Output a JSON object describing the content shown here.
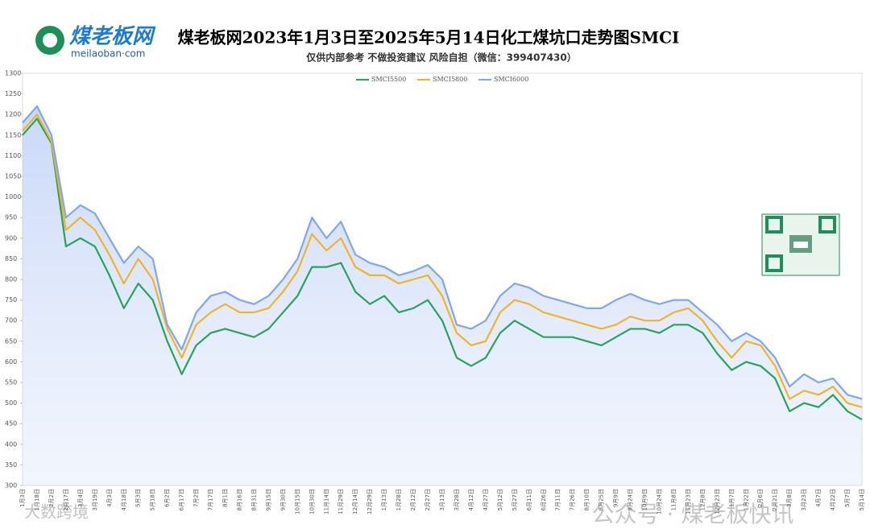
{
  "logo": {
    "name": "煤老板网",
    "url": "meilaoban·com"
  },
  "watermarks": [
    "公众号 · 煤老板快讯",
    "大数跨境"
  ],
  "chart_data": {
    "type": "line",
    "title": "煤老板网2023年1月3日至2025年5月14日化工煤坑口走势图SMCI",
    "subtitle": "仅供内部参考 不做投资建议 风险自担（微信：399407430）",
    "categories": [
      "1月3日",
      "1月18日",
      "2月2日",
      "2月17日",
      "3月4日",
      "3月19日",
      "4月3日",
      "4月18日",
      "5月3日",
      "5月18日",
      "6月2日",
      "6月17日",
      "7月2日",
      "7月17日",
      "8月1日",
      "8月16日",
      "8月31日",
      "9月15日",
      "9月30日",
      "10月15日",
      "10月30日",
      "11月14日",
      "11月29日",
      "12月14日",
      "12月29日",
      "1月13日",
      "1月28日",
      "2月12日",
      "2月27日",
      "3月13日",
      "3月28日",
      "4月12日",
      "4月27日",
      "5月12日",
      "5月27日",
      "6月11日",
      "6月26日",
      "7月11日",
      "7月26日",
      "8月10日",
      "8月25日",
      "9月9日",
      "9月24日",
      "10月9日",
      "10月24日",
      "11月8日",
      "11月23日",
      "12月8日",
      "12月23日",
      "1月7日",
      "1月22日",
      "2月6日",
      "2月21日",
      "3月8日",
      "3月23日",
      "4月7日",
      "4月22日",
      "5月7日",
      "5月14日"
    ],
    "series": [
      {
        "name": "SMCI5500",
        "color": "#27a35a",
        "values": [
          1150,
          1190,
          1130,
          880,
          900,
          880,
          810,
          730,
          790,
          750,
          650,
          570,
          640,
          670,
          680,
          670,
          660,
          680,
          720,
          760,
          830,
          830,
          840,
          770,
          740,
          760,
          720,
          730,
          750,
          700,
          610,
          590,
          610,
          670,
          700,
          680,
          660,
          660,
          660,
          650,
          640,
          660,
          680,
          680,
          670,
          690,
          690,
          670,
          620,
          580,
          600,
          590,
          560,
          480,
          500,
          490,
          520,
          480,
          460
        ]
      },
      {
        "name": "SMCI5800",
        "color": "#f0b429",
        "values": [
          1160,
          1200,
          1135,
          920,
          950,
          920,
          860,
          790,
          850,
          800,
          680,
          610,
          690,
          720,
          740,
          720,
          720,
          730,
          770,
          820,
          910,
          870,
          900,
          830,
          810,
          810,
          790,
          800,
          810,
          760,
          670,
          640,
          650,
          720,
          750,
          740,
          720,
          710,
          700,
          690,
          680,
          690,
          710,
          700,
          700,
          720,
          730,
          700,
          650,
          610,
          650,
          640,
          590,
          510,
          530,
          520,
          540,
          500,
          490
        ]
      },
      {
        "name": "SMCI6000",
        "color": "#7fa6f0",
        "values": [
          1180,
          1220,
          1150,
          950,
          980,
          960,
          900,
          840,
          880,
          850,
          690,
          630,
          720,
          760,
          770,
          750,
          740,
          760,
          800,
          850,
          950,
          900,
          940,
          860,
          840,
          830,
          810,
          820,
          835,
          800,
          690,
          680,
          700,
          760,
          790,
          780,
          760,
          750,
          740,
          730,
          730,
          750,
          765,
          750,
          740,
          750,
          750,
          720,
          690,
          650,
          670,
          650,
          610,
          540,
          570,
          550,
          560,
          520,
          510
        ]
      }
    ],
    "ylim": [
      300,
      1300
    ],
    "yticks": [
      300,
      350,
      400,
      450,
      500,
      550,
      600,
      650,
      700,
      750,
      800,
      850,
      900,
      950,
      1000,
      1050,
      1100,
      1150,
      1200,
      1250,
      1300
    ],
    "legend": "top"
  }
}
